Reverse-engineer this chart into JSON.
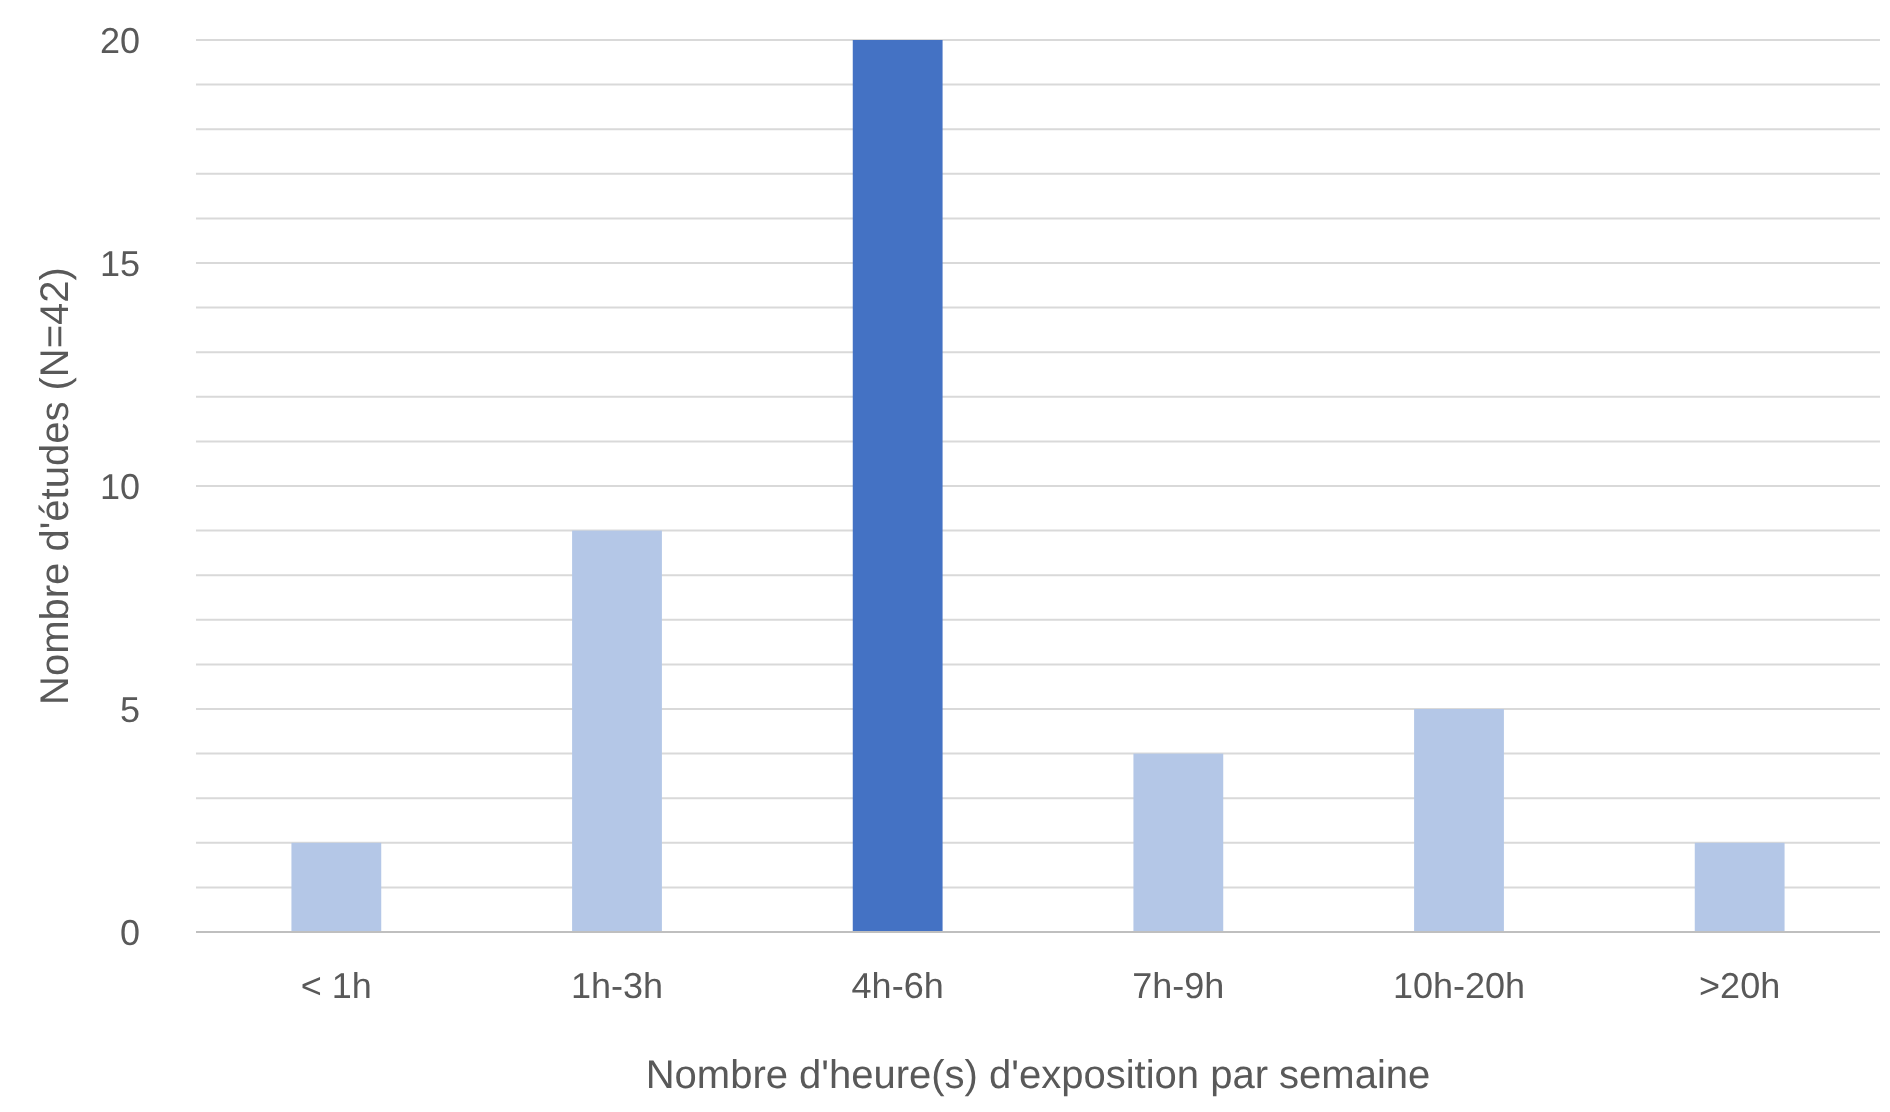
{
  "chart_data": {
    "type": "bar",
    "xlabel": "Nombre d'heure(s) d'exposition par semaine",
    "ylabel": "Nombre d'études (N=42)",
    "categories": [
      "< 1h",
      "1h-3h",
      "4h-6h",
      "7h-9h",
      "10h-20h",
      ">20h"
    ],
    "values": [
      2,
      9,
      20,
      4,
      5,
      2
    ],
    "colors": [
      "#b4c7e7",
      "#b4c7e7",
      "#4472c4",
      "#b4c7e7",
      "#b4c7e7",
      "#b4c7e7"
    ],
    "ylim": [
      0,
      20
    ],
    "yticks": [
      0,
      {
        "value": 1,
        "label": null
      },
      {
        "value": 2,
        "label": null
      },
      {
        "value": 3,
        "label": null
      },
      {
        "value": 4,
        "label": null
      },
      5,
      {
        "value": 6,
        "label": null
      },
      {
        "value": 7,
        "label": null
      },
      {
        "value": 8,
        "label": null
      },
      {
        "value": 9,
        "label": null
      },
      10,
      {
        "value": 11,
        "label": null
      },
      {
        "value": 12,
        "label": null
      },
      {
        "value": 13,
        "label": null
      },
      {
        "value": 14,
        "label": null
      },
      15,
      {
        "value": 16,
        "label": null
      },
      {
        "value": 17,
        "label": null
      },
      {
        "value": 18,
        "label": null
      },
      {
        "value": 19,
        "label": null
      },
      20
    ],
    "grid": true
  }
}
